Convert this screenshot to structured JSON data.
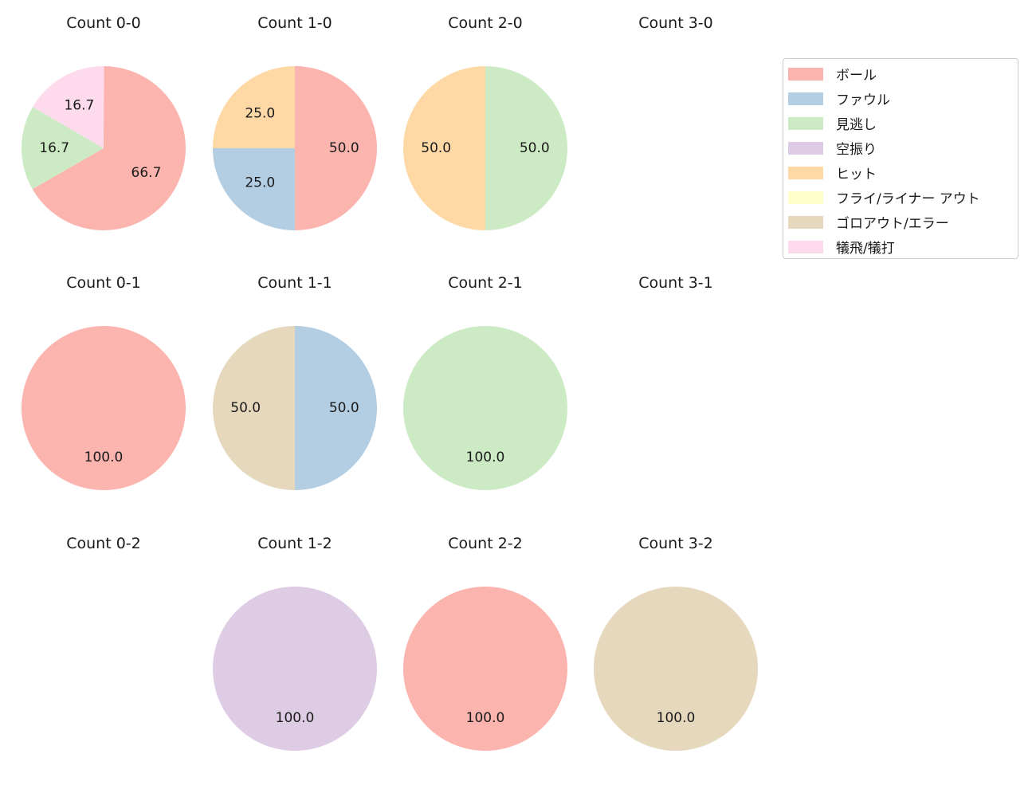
{
  "figure": {
    "background": "#ffffff",
    "text_color": "#1a1a1a"
  },
  "legend": {
    "position": "top-right",
    "entries": [
      {
        "label": "ボール",
        "color": "#fbb4ae"
      },
      {
        "label": "ファウル",
        "color": "#b3cde3"
      },
      {
        "label": "見逃し",
        "color": "#ccebc5"
      },
      {
        "label": "空振り",
        "color": "#decbe4"
      },
      {
        "label": "ヒット",
        "color": "#fed9a6"
      },
      {
        "label": "フライ/ライナー アウト",
        "color": "#ffffcc"
      },
      {
        "label": "ゴロアウト/エラー",
        "color": "#e5d8bd"
      },
      {
        "label": "犠飛/犠打",
        "color": "#fddaec"
      }
    ]
  },
  "chart_data": [
    {
      "type": "pie",
      "title": "Count 0-0",
      "start_angle": 90,
      "direction": "clockwise",
      "pct_distance": 0.6,
      "slices": [
        {
          "label": "ボール",
          "value": 66.7,
          "display": "66.7",
          "color": "#fbb4ae"
        },
        {
          "label": "見逃し",
          "value": 16.7,
          "display": "16.7",
          "color": "#ccebc5"
        },
        {
          "label": "犠飛/犠打",
          "value": 16.7,
          "display": "16.7",
          "color": "#fddaec"
        }
      ]
    },
    {
      "type": "pie",
      "title": "Count 1-0",
      "start_angle": 90,
      "direction": "clockwise",
      "pct_distance": 0.6,
      "slices": [
        {
          "label": "ボール",
          "value": 50.0,
          "display": "50.0",
          "color": "#fbb4ae"
        },
        {
          "label": "ファウル",
          "value": 25.0,
          "display": "25.0",
          "color": "#b3cde3"
        },
        {
          "label": "ヒット",
          "value": 25.0,
          "display": "25.0",
          "color": "#fed9a6"
        }
      ]
    },
    {
      "type": "pie",
      "title": "Count 2-0",
      "start_angle": 90,
      "direction": "clockwise",
      "pct_distance": 0.6,
      "slices": [
        {
          "label": "見逃し",
          "value": 50.0,
          "display": "50.0",
          "color": "#ccebc5"
        },
        {
          "label": "ヒット",
          "value": 50.0,
          "display": "50.0",
          "color": "#fed9a6"
        }
      ]
    },
    {
      "type": "pie",
      "title": "Count 3-0",
      "start_angle": 90,
      "direction": "clockwise",
      "pct_distance": 0.6,
      "slices": []
    },
    {
      "type": "pie",
      "title": "Count 0-1",
      "start_angle": 90,
      "direction": "clockwise",
      "pct_distance": 0.6,
      "slices": [
        {
          "label": "ボール",
          "value": 100.0,
          "display": "100.0",
          "color": "#fbb4ae"
        }
      ]
    },
    {
      "type": "pie",
      "title": "Count 1-1",
      "start_angle": 90,
      "direction": "clockwise",
      "pct_distance": 0.6,
      "slices": [
        {
          "label": "ファウル",
          "value": 50.0,
          "display": "50.0",
          "color": "#b3cde3"
        },
        {
          "label": "ゴロアウト/エラー",
          "value": 50.0,
          "display": "50.0",
          "color": "#e5d8bd"
        }
      ]
    },
    {
      "type": "pie",
      "title": "Count 2-1",
      "start_angle": 90,
      "direction": "clockwise",
      "pct_distance": 0.6,
      "slices": [
        {
          "label": "見逃し",
          "value": 100.0,
          "display": "100.0",
          "color": "#ccebc5"
        }
      ]
    },
    {
      "type": "pie",
      "title": "Count 3-1",
      "start_angle": 90,
      "direction": "clockwise",
      "pct_distance": 0.6,
      "slices": []
    },
    {
      "type": "pie",
      "title": "Count 0-2",
      "start_angle": 90,
      "direction": "clockwise",
      "pct_distance": 0.6,
      "slices": []
    },
    {
      "type": "pie",
      "title": "Count 1-2",
      "start_angle": 90,
      "direction": "clockwise",
      "pct_distance": 0.6,
      "slices": [
        {
          "label": "空振り",
          "value": 100.0,
          "display": "100.0",
          "color": "#decbe4"
        }
      ]
    },
    {
      "type": "pie",
      "title": "Count 2-2",
      "start_angle": 90,
      "direction": "clockwise",
      "pct_distance": 0.6,
      "slices": [
        {
          "label": "ボール",
          "value": 100.0,
          "display": "100.0",
          "color": "#fbb4ae"
        }
      ]
    },
    {
      "type": "pie",
      "title": "Count 3-2",
      "start_angle": 90,
      "direction": "clockwise",
      "pct_distance": 0.6,
      "slices": [
        {
          "label": "ゴロアウト/エラー",
          "value": 100.0,
          "display": "100.0",
          "color": "#e5d8bd"
        }
      ]
    }
  ]
}
